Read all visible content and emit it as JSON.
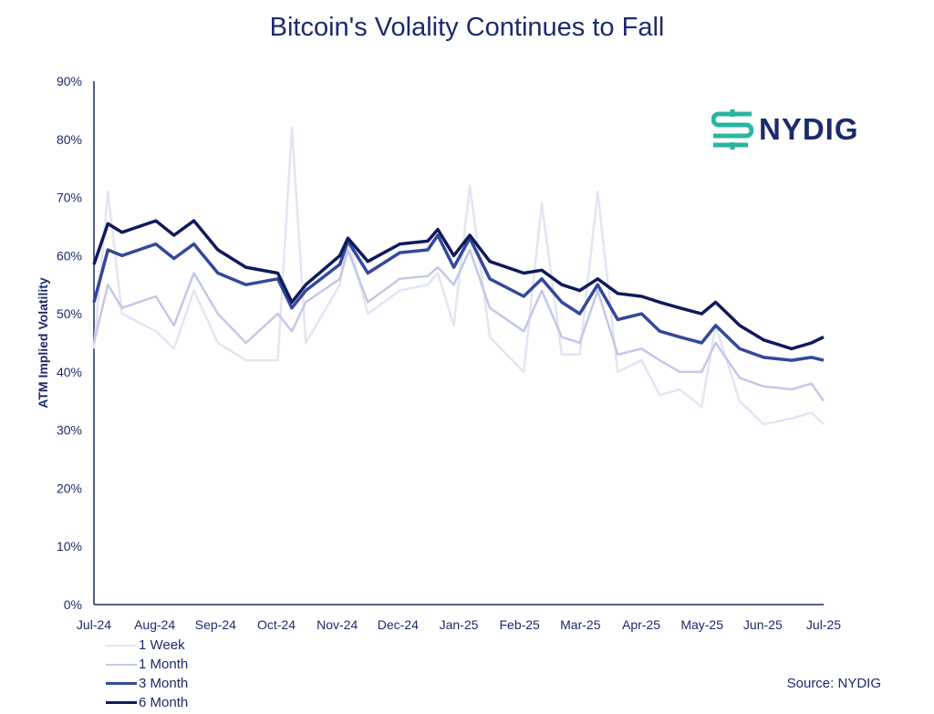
{
  "chart_data": {
    "type": "line",
    "title": "Bitcoin's Volality Continues to Fall",
    "ylabel": "ATM Implied Volatility",
    "xlabel": "",
    "ylim": [
      0,
      90
    ],
    "yticks": [
      "0%",
      "10%",
      "20%",
      "30%",
      "40%",
      "50%",
      "60%",
      "70%",
      "80%",
      "90%"
    ],
    "xticks": [
      "Jul-24",
      "Aug-24",
      "Sep-24",
      "Oct-24",
      "Nov-24",
      "Dec-24",
      "Jan-25",
      "Feb-25",
      "Mar-25",
      "Apr-25",
      "May-25",
      "Jun-25",
      "Jul-25"
    ],
    "xlim": [
      "2024-07-01",
      "2025-07-01"
    ],
    "grid": false,
    "legend_position": "bottom-left",
    "x": [
      "2024-07-01",
      "2024-07-08",
      "2024-07-15",
      "2024-08-01",
      "2024-08-10",
      "2024-08-20",
      "2024-09-01",
      "2024-09-15",
      "2024-10-01",
      "2024-10-08",
      "2024-10-15",
      "2024-11-01",
      "2024-11-05",
      "2024-11-15",
      "2024-12-01",
      "2024-12-15",
      "2024-12-20",
      "2024-12-28",
      "2025-01-05",
      "2025-01-15",
      "2025-02-01",
      "2025-02-10",
      "2025-02-20",
      "2025-03-01",
      "2025-03-10",
      "2025-03-20",
      "2025-04-01",
      "2025-04-10",
      "2025-04-20",
      "2025-05-01",
      "2025-05-08",
      "2025-05-20",
      "2025-06-01",
      "2025-06-15",
      "2025-06-25",
      "2025-07-01"
    ],
    "series": [
      {
        "name": "1 Week",
        "color": "#e3e5f2",
        "values": [
          44,
          71,
          50,
          47,
          44,
          54,
          45,
          42,
          42,
          82,
          45,
          55,
          63,
          50,
          54,
          55,
          57,
          48,
          72,
          46,
          40,
          69,
          43,
          43,
          71,
          40,
          42,
          36,
          37,
          34,
          48,
          35,
          31,
          32,
          33,
          31
        ]
      },
      {
        "name": "1 Month",
        "color": "#c3c8e8",
        "values": [
          45,
          55,
          51,
          53,
          48,
          57,
          50,
          45,
          50,
          47,
          52,
          56,
          61,
          52,
          56,
          56.5,
          58,
          55,
          61,
          51,
          47,
          54,
          46,
          45,
          54,
          43,
          44,
          42,
          40,
          40,
          45,
          39,
          37.5,
          37,
          38,
          35
        ]
      },
      {
        "name": "3 Month",
        "color": "#34489a",
        "values": [
          52,
          61,
          60,
          62,
          59.5,
          62,
          57,
          55,
          56,
          51,
          54,
          58.5,
          62.5,
          57,
          60.5,
          61,
          63.5,
          58,
          63,
          56,
          53,
          56,
          52,
          50,
          55,
          49,
          50,
          47,
          46,
          45,
          48,
          44,
          42.5,
          42,
          42.5,
          42
        ]
      },
      {
        "name": "6 Month",
        "color": "#0f1a5c",
        "values": [
          58.5,
          65.5,
          64,
          66,
          63.5,
          66,
          61,
          58,
          57,
          52,
          55,
          60,
          63,
          59,
          62,
          62.5,
          64.5,
          60,
          63.5,
          59,
          57,
          57.5,
          55,
          54,
          56,
          53.5,
          53,
          52,
          51,
          50,
          52,
          48,
          45.5,
          44,
          45,
          46
        ]
      }
    ]
  },
  "logo": {
    "text": "NYDIG",
    "color": "#2ab5a0"
  },
  "source": "Source: NYDIG"
}
